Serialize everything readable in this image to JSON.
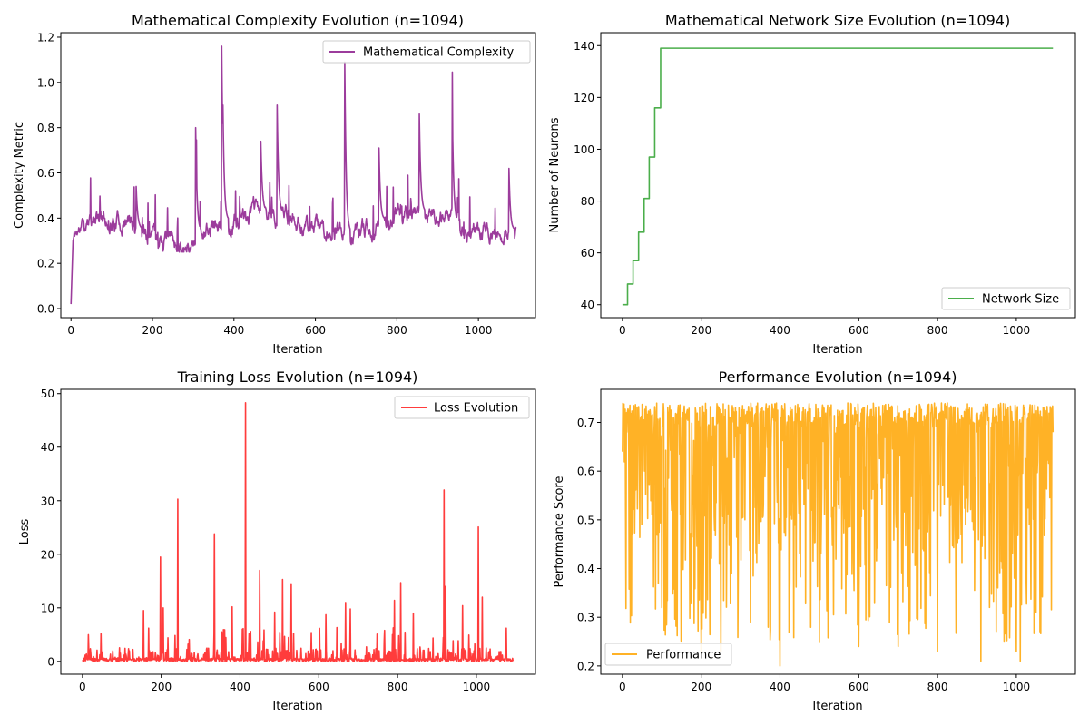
{
  "panels": [
    {
      "title": "Mathematical Complexity Evolution (n=1094)",
      "xlabel": "Iteration",
      "ylabel": "Complexity Metric",
      "xlim": [
        -25,
        1140
      ],
      "ylim": [
        -0.04,
        1.22
      ],
      "xticks": [
        0,
        200,
        400,
        600,
        800,
        1000
      ],
      "yticks": [
        "0.0",
        "0.2",
        "0.4",
        "0.6",
        "0.8",
        "1.0",
        "1.2"
      ],
      "legend": "top-right",
      "series": {
        "name": "Mathematical Complexity",
        "color": "#8b1a8b",
        "kind": "complexity"
      }
    },
    {
      "title": "Mathematical Network Size Evolution (n=1094)",
      "xlabel": "Iteration",
      "ylabel": "Number of Neurons",
      "xlim": [
        -55,
        1150
      ],
      "ylim": [
        35,
        145
      ],
      "xticks": [
        0,
        200,
        400,
        600,
        800,
        1000
      ],
      "yticks": [
        "40",
        "60",
        "80",
        "100",
        "120",
        "140"
      ],
      "legend": "bottom-right",
      "series": {
        "name": "Network Size",
        "color": "#2ca02c",
        "kind": "steps"
      }
    },
    {
      "title": "Training Loss Evolution (n=1094)",
      "xlabel": "Iteration",
      "ylabel": "Loss",
      "xlim": [
        -55,
        1150
      ],
      "ylim": [
        -2.4,
        50.8
      ],
      "xticks": [
        0,
        200,
        400,
        600,
        800,
        1000
      ],
      "yticks": [
        "0",
        "10",
        "20",
        "30",
        "40",
        "50"
      ],
      "legend": "top-right",
      "series": {
        "name": "Loss Evolution",
        "color": "#ff1a1a",
        "kind": "loss"
      }
    },
    {
      "title": "Performance Evolution (n=1094)",
      "xlabel": "Iteration",
      "ylabel": "Performance Score",
      "xlim": [
        -55,
        1150
      ],
      "ylim": [
        0.183,
        0.768
      ],
      "xticks": [
        0,
        200,
        400,
        600,
        800,
        1000
      ],
      "yticks": [
        "0.2",
        "0.3",
        "0.4",
        "0.5",
        "0.6",
        "0.7"
      ],
      "legend": "bottom-left",
      "series": {
        "name": "Performance",
        "color": "#ffa500",
        "kind": "performance"
      }
    }
  ],
  "chart_data": [
    {
      "type": "line",
      "title": "Mathematical Complexity Evolution (n=1094)",
      "xlabel": "Iteration",
      "ylabel": "Complexity Metric",
      "xlim": [
        -25,
        1140
      ],
      "ylim": [
        -0.04,
        1.22
      ],
      "series": [
        {
          "name": "Mathematical Complexity",
          "color": "#8b1a8b",
          "x": [
            0,
            5,
            20,
            50,
            80,
            100,
            130,
            160,
            200,
            240,
            270,
            306,
            330,
            370,
            373,
            400,
            440,
            466,
            500,
            506,
            550,
            600,
            650,
            672,
            700,
            756,
            800,
            855,
            900,
            936,
            1000,
            1050,
            1075,
            1093
          ],
          "values": [
            0.02,
            0.3,
            0.36,
            0.33,
            0.48,
            0.35,
            0.42,
            0.54,
            0.26,
            0.45,
            0.33,
            0.8,
            0.38,
            1.16,
            0.9,
            0.35,
            0.42,
            0.74,
            0.32,
            0.9,
            0.3,
            0.5,
            0.28,
            1.09,
            0.48,
            0.71,
            0.35,
            0.86,
            0.36,
            0.87,
            0.32,
            0.4,
            0.62,
            0.38
          ]
        }
      ]
    },
    {
      "type": "line",
      "title": "Mathematical Network Size Evolution (n=1094)",
      "xlabel": "Iteration",
      "ylabel": "Number of Neurons",
      "xlim": [
        -55,
        1150
      ],
      "ylim": [
        35,
        145
      ],
      "series": [
        {
          "name": "Network Size",
          "color": "#2ca02c",
          "x": [
            0,
            13,
            27,
            41,
            55,
            68,
            82,
            97,
            1093
          ],
          "values": [
            40,
            48,
            57,
            68,
            81,
            97,
            116,
            139,
            139
          ]
        }
      ]
    },
    {
      "type": "line",
      "title": "Training Loss Evolution (n=1094)",
      "xlabel": "Iteration",
      "ylabel": "Loss",
      "xlim": [
        -55,
        1150
      ],
      "ylim": [
        -2.4,
        50.8
      ],
      "series": [
        {
          "name": "Loss Evolution",
          "color": "#ff1a1a",
          "x": [
            0,
            155,
            198,
            205,
            242,
            335,
            380,
            414,
            450,
            488,
            508,
            530,
            618,
            668,
            680,
            792,
            808,
            840,
            918,
            922,
            965,
            1005,
            1015,
            1093
          ],
          "values": [
            0.2,
            9.5,
            19.5,
            10,
            30.3,
            23.8,
            10.2,
            48.3,
            17,
            9.2,
            15.3,
            14.5,
            8.7,
            11,
            9.8,
            11.4,
            14.7,
            9,
            32,
            14,
            10.4,
            25.1,
            12,
            0.3
          ]
        }
      ]
    },
    {
      "type": "line",
      "title": "Performance Evolution (n=1094)",
      "xlabel": "Iteration",
      "ylabel": "Performance Score",
      "xlim": [
        -55,
        1150
      ],
      "ylim": [
        0.183,
        0.768
      ],
      "series": [
        {
          "name": "Performance",
          "color": "#ffa500",
          "x": [
            0,
            10,
            25,
            100,
            200,
            250,
            400,
            500,
            600,
            700,
            800,
            910,
            1000,
            1010,
            1050,
            1093
          ],
          "values": [
            0.64,
            0.72,
            0.47,
            0.32,
            0.23,
            0.23,
            0.2,
            0.25,
            0.24,
            0.24,
            0.23,
            0.21,
            0.23,
            0.21,
            0.31,
            0.68
          ]
        }
      ]
    }
  ]
}
